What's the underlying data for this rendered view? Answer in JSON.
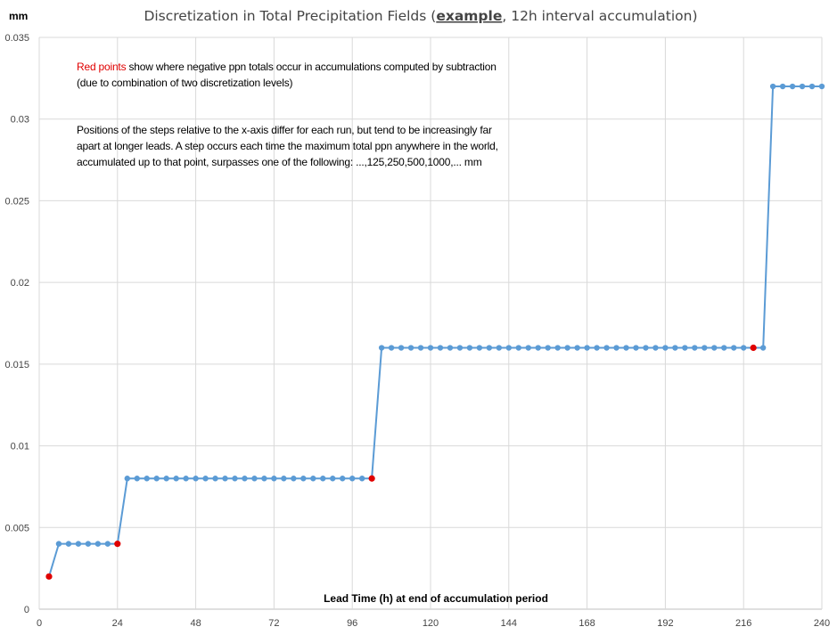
{
  "chart_data": {
    "type": "line",
    "title_prefix": "Discretization in Total Precipitation Fields (",
    "title_underlined": "example",
    "title_suffix": ", 12h interval accumulation)",
    "unit_label": "mm",
    "xlabel": "Lead Time (h) at end of accumulation period",
    "xlim": [
      0,
      240
    ],
    "ylim": [
      0,
      0.035
    ],
    "x_ticks": [
      "0",
      "24",
      "48",
      "72",
      "96",
      "120",
      "144",
      "168",
      "192",
      "216",
      "240"
    ],
    "y_ticks": [
      "0",
      "0.005",
      "0.01",
      "0.015",
      "0.02",
      "0.025",
      "0.03",
      "0.035"
    ],
    "grid": true,
    "series": [
      {
        "color": "#5b9bd5",
        "highlight_color": "#e00000",
        "x": [
          3,
          6,
          9,
          12,
          15,
          18,
          21,
          24,
          27,
          30,
          33,
          36,
          39,
          42,
          45,
          48,
          51,
          54,
          57,
          60,
          63,
          66,
          69,
          72,
          75,
          78,
          81,
          84,
          87,
          90,
          93,
          96,
          99,
          102,
          105,
          108,
          111,
          114,
          117,
          120,
          123,
          126,
          129,
          132,
          135,
          138,
          141,
          144,
          147,
          150,
          153,
          156,
          159,
          162,
          165,
          168,
          171,
          174,
          177,
          180,
          183,
          186,
          189,
          192,
          195,
          198,
          201,
          204,
          207,
          210,
          213,
          216,
          219,
          222,
          225,
          228,
          231,
          234,
          237,
          240
        ],
        "y": [
          0.002,
          0.004,
          0.004,
          0.004,
          0.004,
          0.004,
          0.004,
          0.004,
          0.008,
          0.008,
          0.008,
          0.008,
          0.008,
          0.008,
          0.008,
          0.008,
          0.008,
          0.008,
          0.008,
          0.008,
          0.008,
          0.008,
          0.008,
          0.008,
          0.008,
          0.008,
          0.008,
          0.008,
          0.008,
          0.008,
          0.008,
          0.008,
          0.008,
          0.008,
          0.016,
          0.016,
          0.016,
          0.016,
          0.016,
          0.016,
          0.016,
          0.016,
          0.016,
          0.016,
          0.016,
          0.016,
          0.016,
          0.016,
          0.016,
          0.016,
          0.016,
          0.016,
          0.016,
          0.016,
          0.016,
          0.016,
          0.016,
          0.016,
          0.016,
          0.016,
          0.016,
          0.016,
          0.016,
          0.016,
          0.016,
          0.016,
          0.016,
          0.016,
          0.016,
          0.016,
          0.016,
          0.016,
          0.016,
          0.016,
          0.032,
          0.032,
          0.032,
          0.032,
          0.032,
          0.032
        ],
        "highlight_x": [
          3,
          24,
          102,
          219
        ]
      }
    ],
    "annotations": {
      "note1_red": "Red  points",
      "note1_rest": " show where negative ppn totals occur in accumulations computed by subtraction (due to combination of two discretization levels)",
      "note2": "Positions of the steps relative to the x-axis differ for each run, but tend to be increasingly far apart at longer leads.  A step occurs each time the maximum total ppn anywhere in the world, accumulated up to that point, surpasses one of the following:   ...,125,250,500,1000,...  mm"
    }
  }
}
